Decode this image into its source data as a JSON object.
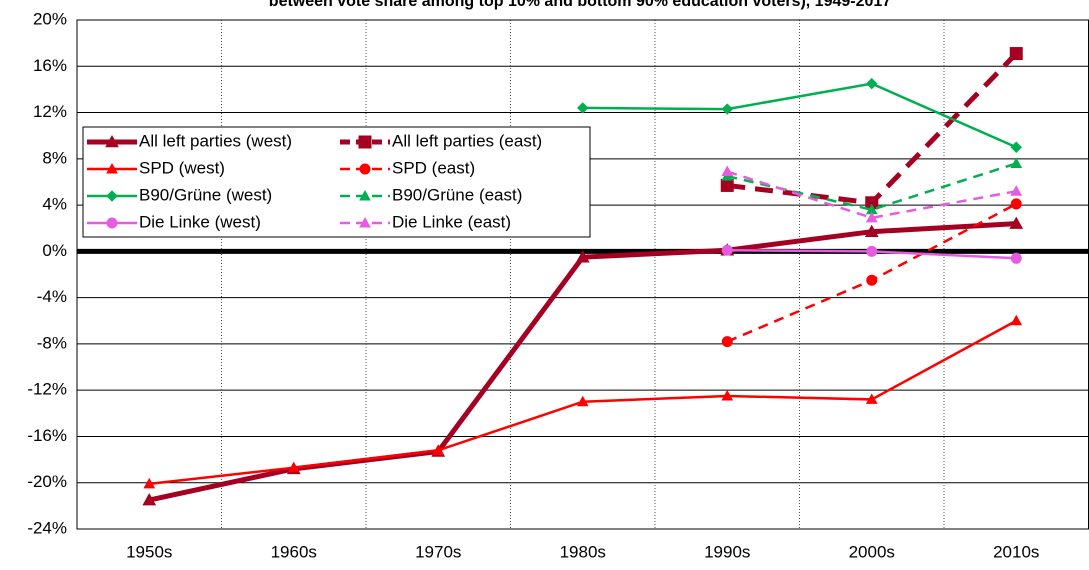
{
  "chart_data": {
    "type": "line",
    "title": "between vote share among top 10% and bottom 90% education voters), 1949-2017",
    "categories": [
      "1950s",
      "1960s",
      "1970s",
      "1980s",
      "1990s",
      "2000s",
      "2010s"
    ],
    "ylim": [
      -24,
      20
    ],
    "yticks": [
      {
        "value": -24,
        "label": "-24%"
      },
      {
        "value": -20,
        "label": "-20%"
      },
      {
        "value": -16,
        "label": "-16%"
      },
      {
        "value": -12,
        "label": "-12%"
      },
      {
        "value": -8,
        "label": "-8%"
      },
      {
        "value": -4,
        "label": "-4%"
      },
      {
        "value": 0,
        "label": "0%"
      },
      {
        "value": 4,
        "label": "4%"
      },
      {
        "value": 8,
        "label": "8%"
      },
      {
        "value": 12,
        "label": "12%"
      },
      {
        "value": 16,
        "label": "16%"
      },
      {
        "value": 20,
        "label": "20%"
      }
    ],
    "grid": true,
    "legend": "upper left",
    "series": [
      {
        "name": "All left parties (west)",
        "color": "#a50021",
        "width": 5,
        "dashed": false,
        "marker": "triangle",
        "values": [
          -21.5,
          -18.8,
          -17.3,
          -0.5,
          0.1,
          1.7,
          2.4
        ]
      },
      {
        "name": "All left parties (east)",
        "color": "#a50021",
        "width": 5,
        "dashed": true,
        "marker": "square",
        "values": [
          null,
          null,
          null,
          null,
          5.7,
          4.2,
          17.1
        ]
      },
      {
        "name": "SPD (west)",
        "color": "#ff0000",
        "width": 2.5,
        "dashed": false,
        "marker": "triangle",
        "values": [
          -20.1,
          -18.7,
          -17.2,
          -13.0,
          -12.5,
          -12.8,
          -6.0
        ]
      },
      {
        "name": "SPD (east)",
        "color": "#ff0000",
        "width": 2.5,
        "dashed": true,
        "marker": "circle",
        "values": [
          null,
          null,
          null,
          null,
          -7.8,
          -2.5,
          4.1
        ]
      },
      {
        "name": "B90/Grüne (west)",
        "color": "#00b050",
        "width": 2.5,
        "dashed": false,
        "marker": "diamond",
        "values": [
          null,
          null,
          null,
          12.4,
          12.3,
          14.5,
          9.0
        ]
      },
      {
        "name": "B90/Grüne (east)",
        "color": "#00b050",
        "width": 2.5,
        "dashed": true,
        "marker": "triangle",
        "values": [
          null,
          null,
          null,
          null,
          6.5,
          3.6,
          7.6
        ]
      },
      {
        "name": "Die Linke (west)",
        "color": "#e65ce0",
        "width": 2.5,
        "dashed": false,
        "marker": "circle",
        "values": [
          null,
          null,
          null,
          null,
          0.1,
          0.0,
          -0.6
        ]
      },
      {
        "name": "Die Linke (east)",
        "color": "#e65ce0",
        "width": 2.5,
        "dashed": true,
        "marker": "triangle",
        "values": [
          null,
          null,
          null,
          null,
          6.9,
          2.9,
          5.2
        ]
      }
    ]
  }
}
